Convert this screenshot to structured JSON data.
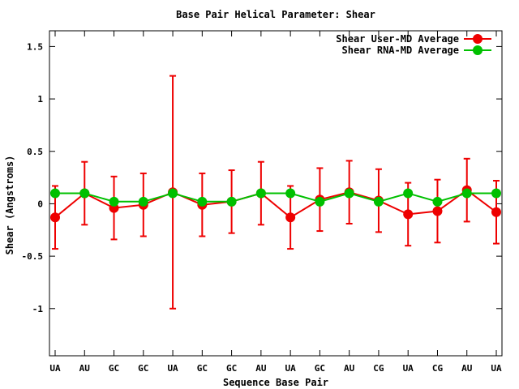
{
  "chart_data": {
    "type": "line",
    "title": "Base Pair Helical Parameter: Shear",
    "xlabel": "Sequence Base Pair",
    "ylabel": "Shear (Angstroms)",
    "ylim": [
      -1.45,
      1.65
    ],
    "y_ticks": [
      1.5,
      1,
      0.5,
      0,
      -0.5,
      -1
    ],
    "y_tick_labels": [
      "1.5",
      "1",
      "0.5",
      "0",
      "-0.5",
      "-1"
    ],
    "categories": [
      "UA",
      "AU",
      "GC",
      "GC",
      "UA",
      "GC",
      "GC",
      "AU",
      "UA",
      "GC",
      "AU",
      "CG",
      "UA",
      "CG",
      "AU",
      "UA"
    ],
    "legend_position": "top-right",
    "grid": false,
    "series": [
      {
        "name": "Shear User-MD Average",
        "color": "#ee0000",
        "values": [
          -0.13,
          0.1,
          -0.04,
          -0.01,
          0.11,
          -0.01,
          0.02,
          0.1,
          -0.13,
          0.04,
          0.11,
          0.03,
          -0.1,
          -0.07,
          0.13,
          -0.08
        ],
        "errors": [
          0.3,
          0.3,
          0.3,
          0.3,
          1.11,
          0.3,
          0.3,
          0.3,
          0.3,
          0.3,
          0.3,
          0.3,
          0.3,
          0.3,
          0.3,
          0.3
        ]
      },
      {
        "name": "Shear RNA-MD Average",
        "color": "#00c000",
        "values": [
          0.1,
          0.1,
          0.02,
          0.02,
          0.1,
          0.02,
          0.02,
          0.1,
          0.1,
          0.02,
          0.1,
          0.02,
          0.1,
          0.02,
          0.1,
          0.1
        ]
      }
    ]
  }
}
